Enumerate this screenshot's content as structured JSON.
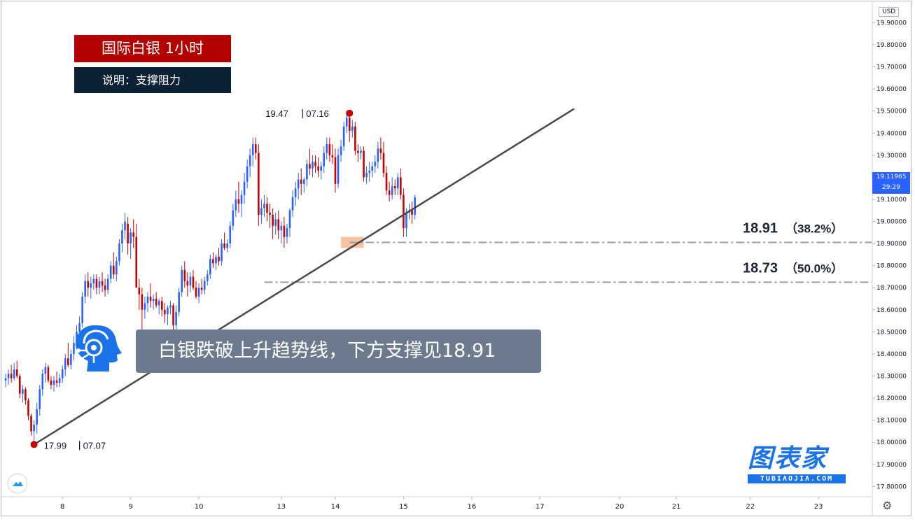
{
  "header": {
    "title": "国际白银  1小时",
    "subtitle": "说明：支撑阻力"
  },
  "callout": {
    "text": "白银跌破上升趋势线，下方支撑见18.91"
  },
  "currency_label": "USD",
  "current_price": {
    "value": "19.11965",
    "countdown": "29:29"
  },
  "logo": {
    "main": "图表家",
    "sub": "TUBIAOJIA.COM"
  },
  "chart_data": {
    "type": "candlestick",
    "y_range": [
      17.76,
      19.99
    ],
    "y_ticks": [
      "19.90000",
      "19.80000",
      "19.70000",
      "19.60000",
      "19.50000",
      "19.40000",
      "19.30000",
      "19.20000",
      "19.10000",
      "19.00000",
      "18.90000",
      "18.80000",
      "18.70000",
      "18.60000",
      "18.50000",
      "18.40000",
      "18.30000",
      "18.20000",
      "18.10000",
      "18.00000",
      "17.90000",
      "17.80000"
    ],
    "x_ticks": [
      {
        "label": "8",
        "bar": 20
      },
      {
        "label": "9",
        "bar": 44
      },
      {
        "label": "10",
        "bar": 68
      },
      {
        "label": "13",
        "bar": 97
      },
      {
        "label": "14",
        "bar": 116
      },
      {
        "label": "15",
        "bar": 140
      },
      {
        "label": "16",
        "bar": 164
      },
      {
        "label": "17",
        "bar": 188
      },
      {
        "label": "20",
        "bar": 216
      },
      {
        "label": "21",
        "bar": 236
      },
      {
        "label": "22",
        "bar": 262
      },
      {
        "label": "23",
        "bar": 286
      }
    ],
    "bars": [
      [
        18.28,
        18.31,
        18.25,
        18.29
      ],
      [
        18.29,
        18.33,
        18.26,
        18.31
      ],
      [
        18.31,
        18.35,
        18.27,
        18.29
      ],
      [
        18.29,
        18.36,
        18.28,
        18.33
      ],
      [
        18.33,
        18.37,
        18.29,
        18.3
      ],
      [
        18.3,
        18.31,
        18.2,
        18.22
      ],
      [
        18.22,
        18.26,
        18.18,
        18.24
      ],
      [
        18.24,
        18.25,
        18.17,
        18.19
      ],
      [
        18.19,
        18.2,
        18.1,
        18.12
      ],
      [
        18.12,
        18.13,
        18.03,
        18.05
      ],
      [
        18.05,
        18.1,
        17.99,
        18.08
      ],
      [
        18.08,
        18.18,
        18.04,
        18.15
      ],
      [
        18.15,
        18.26,
        18.12,
        18.24
      ],
      [
        18.24,
        18.33,
        18.21,
        18.31
      ],
      [
        18.31,
        18.36,
        18.27,
        18.34
      ],
      [
        18.34,
        18.35,
        18.27,
        18.28
      ],
      [
        18.28,
        18.3,
        18.24,
        18.26
      ],
      [
        18.26,
        18.3,
        18.23,
        18.28
      ],
      [
        18.28,
        18.32,
        18.25,
        18.27
      ],
      [
        18.27,
        18.31,
        18.25,
        18.29
      ],
      [
        18.29,
        18.35,
        18.27,
        18.33
      ],
      [
        18.33,
        18.4,
        18.3,
        18.38
      ],
      [
        18.38,
        18.45,
        18.34,
        18.35
      ],
      [
        18.35,
        18.42,
        18.33,
        18.4
      ],
      [
        18.4,
        18.48,
        18.37,
        18.45
      ],
      [
        18.45,
        18.53,
        18.42,
        18.5
      ],
      [
        18.5,
        18.57,
        18.48,
        18.54
      ],
      [
        18.54,
        18.68,
        18.52,
        18.66
      ],
      [
        18.66,
        18.76,
        18.63,
        18.73
      ],
      [
        18.73,
        18.77,
        18.66,
        18.7
      ],
      [
        18.7,
        18.75,
        18.65,
        18.72
      ],
      [
        18.72,
        18.76,
        18.69,
        18.74
      ],
      [
        18.74,
        18.76,
        18.67,
        18.7
      ],
      [
        18.7,
        18.75,
        18.67,
        18.73
      ],
      [
        18.73,
        18.77,
        18.68,
        18.71
      ],
      [
        18.71,
        18.74,
        18.66,
        18.69
      ],
      [
        18.69,
        18.76,
        18.67,
        18.74
      ],
      [
        18.74,
        18.82,
        18.72,
        18.8
      ],
      [
        18.8,
        18.86,
        18.74,
        18.76
      ],
      [
        18.76,
        18.84,
        18.73,
        18.82
      ],
      [
        18.82,
        18.92,
        18.8,
        18.9
      ],
      [
        18.9,
        18.99,
        18.86,
        18.96
      ],
      [
        18.96,
        19.04,
        18.92,
        19.0
      ],
      [
        18.99,
        19.02,
        18.85,
        18.9
      ],
      [
        18.9,
        18.97,
        18.83,
        18.95
      ],
      [
        18.95,
        19.01,
        18.88,
        18.93
      ],
      [
        18.93,
        18.99,
        18.78,
        18.7
      ],
      [
        18.7,
        18.74,
        18.6,
        18.67
      ],
      [
        18.67,
        18.7,
        18.49,
        18.6
      ],
      [
        18.6,
        18.66,
        18.56,
        18.63
      ],
      [
        18.63,
        18.68,
        18.59,
        18.66
      ],
      [
        18.66,
        18.72,
        18.61,
        18.64
      ],
      [
        18.64,
        18.67,
        18.6,
        18.65
      ],
      [
        18.65,
        18.68,
        18.61,
        18.62
      ],
      [
        18.62,
        18.65,
        18.58,
        18.64
      ],
      [
        18.64,
        18.66,
        18.57,
        18.6
      ],
      [
        18.6,
        18.63,
        18.54,
        18.58
      ],
      [
        18.58,
        18.62,
        18.53,
        18.61
      ],
      [
        18.61,
        18.64,
        18.58,
        18.62
      ],
      [
        18.62,
        18.63,
        18.5,
        18.53
      ],
      [
        18.53,
        18.62,
        18.5,
        18.59
      ],
      [
        18.59,
        18.7,
        18.57,
        18.68
      ],
      [
        18.68,
        18.8,
        18.66,
        18.78
      ],
      [
        18.78,
        18.82,
        18.7,
        18.73
      ],
      [
        18.73,
        18.77,
        18.66,
        18.71
      ],
      [
        18.71,
        18.77,
        18.68,
        18.75
      ],
      [
        18.75,
        18.78,
        18.69,
        18.7
      ],
      [
        18.7,
        18.73,
        18.65,
        18.66
      ],
      [
        18.66,
        18.72,
        18.63,
        18.7
      ],
      [
        18.7,
        18.74,
        18.67,
        18.69
      ],
      [
        18.69,
        18.75,
        18.67,
        18.73
      ],
      [
        18.73,
        18.78,
        18.71,
        18.76
      ],
      [
        18.76,
        18.85,
        18.74,
        18.83
      ],
      [
        18.83,
        18.86,
        18.79,
        18.81
      ],
      [
        18.81,
        18.85,
        18.78,
        18.84
      ],
      [
        18.84,
        18.88,
        18.8,
        18.82
      ],
      [
        18.82,
        18.92,
        18.8,
        18.9
      ],
      [
        18.9,
        18.95,
        18.87,
        18.88
      ],
      [
        18.88,
        18.92,
        18.86,
        18.9
      ],
      [
        18.9,
        19.0,
        18.88,
        18.98
      ],
      [
        18.98,
        19.08,
        18.96,
        19.05
      ],
      [
        19.05,
        19.14,
        19.02,
        19.1
      ],
      [
        19.1,
        19.18,
        19.04,
        19.08
      ],
      [
        19.08,
        19.14,
        19.02,
        19.12
      ],
      [
        19.12,
        19.22,
        19.08,
        19.18
      ],
      [
        19.18,
        19.28,
        19.15,
        19.25
      ],
      [
        19.25,
        19.33,
        19.2,
        19.3
      ],
      [
        19.3,
        19.38,
        19.25,
        19.35
      ],
      [
        19.35,
        19.38,
        19.28,
        19.31
      ],
      [
        19.31,
        19.35,
        18.98,
        19.03
      ],
      [
        19.03,
        19.1,
        18.99,
        19.06
      ],
      [
        19.06,
        19.12,
        19.02,
        19.08
      ],
      [
        19.08,
        19.11,
        19.0,
        19.04
      ],
      [
        19.04,
        19.08,
        18.97,
        19.03
      ],
      [
        19.03,
        19.06,
        18.92,
        18.98
      ],
      [
        18.98,
        19.04,
        18.94,
        19.01
      ],
      [
        19.01,
        19.05,
        18.92,
        18.96
      ],
      [
        18.96,
        19.0,
        18.9,
        18.98
      ],
      [
        18.98,
        19.02,
        18.88,
        18.93
      ],
      [
        18.93,
        18.99,
        18.9,
        18.97
      ],
      [
        18.97,
        19.06,
        18.93,
        19.05
      ],
      [
        19.05,
        19.14,
        19.02,
        19.11
      ],
      [
        19.11,
        19.18,
        19.07,
        19.15
      ],
      [
        19.15,
        19.22,
        19.1,
        19.19
      ],
      [
        19.19,
        19.24,
        19.12,
        19.17
      ],
      [
        19.17,
        19.2,
        19.13,
        19.19
      ],
      [
        19.19,
        19.28,
        19.16,
        19.26
      ],
      [
        19.26,
        19.33,
        19.21,
        19.24
      ],
      [
        19.24,
        19.3,
        19.2,
        19.27
      ],
      [
        19.27,
        19.3,
        19.22,
        19.25
      ],
      [
        19.25,
        19.29,
        19.2,
        19.23
      ],
      [
        19.23,
        19.27,
        19.19,
        19.25
      ],
      [
        19.25,
        19.34,
        19.22,
        19.31
      ],
      [
        19.31,
        19.38,
        19.28,
        19.35
      ],
      [
        19.35,
        19.38,
        19.27,
        19.3
      ],
      [
        19.3,
        19.35,
        19.26,
        19.29
      ],
      [
        19.29,
        19.33,
        19.13,
        19.17
      ],
      [
        19.17,
        19.33,
        19.15,
        19.3
      ],
      [
        19.3,
        19.37,
        19.27,
        19.34
      ],
      [
        19.34,
        19.45,
        19.32,
        19.43
      ],
      [
        19.43,
        19.5,
        19.4,
        19.47
      ],
      [
        19.47,
        19.49,
        19.36,
        19.41
      ],
      [
        19.41,
        19.46,
        19.38,
        19.43
      ],
      [
        19.43,
        19.45,
        19.3,
        19.32
      ],
      [
        19.32,
        19.35,
        19.27,
        19.31
      ],
      [
        19.31,
        19.34,
        19.28,
        19.32
      ],
      [
        19.32,
        19.34,
        19.18,
        19.2
      ],
      [
        19.2,
        19.25,
        19.17,
        19.22
      ],
      [
        19.22,
        19.27,
        19.18,
        19.23
      ],
      [
        19.23,
        19.27,
        19.2,
        19.25
      ],
      [
        19.25,
        19.3,
        19.22,
        19.27
      ],
      [
        19.27,
        19.36,
        19.24,
        19.33
      ],
      [
        19.33,
        19.38,
        19.28,
        19.31
      ],
      [
        19.31,
        19.36,
        19.2,
        19.22
      ],
      [
        19.22,
        19.25,
        19.12,
        19.14
      ],
      [
        19.14,
        19.18,
        19.09,
        19.12
      ],
      [
        19.12,
        19.2,
        19.1,
        19.16
      ],
      [
        19.16,
        19.19,
        19.12,
        19.15
      ],
      [
        19.15,
        19.22,
        19.12,
        19.2
      ],
      [
        19.2,
        19.24,
        19.1,
        19.12
      ],
      [
        19.12,
        19.15,
        18.93,
        18.97
      ],
      [
        18.97,
        19.06,
        18.93,
        19.04
      ],
      [
        19.04,
        19.08,
        19.01,
        19.05
      ],
      [
        19.05,
        19.09,
        18.99,
        19.03
      ],
      [
        19.03,
        19.12,
        19.01,
        19.11
      ]
    ],
    "trendline": [
      {
        "bar": 10,
        "price": 17.99
      },
      {
        "bar": 200,
        "price": 19.51
      }
    ],
    "high_marker": {
      "label": "19.47",
      "time": "07.16",
      "bar": 121,
      "price": 19.49
    },
    "low_marker": {
      "label": "17.99",
      "time": "07.07",
      "bar": 10,
      "price": 17.99
    },
    "levels": [
      {
        "price": 18.905,
        "label": "18.91",
        "pct": "（38.2%）",
        "from_bar": 121
      },
      {
        "price": 18.725,
        "label": "18.73",
        "pct": "（50.0%）",
        "from_bar": 91
      }
    ],
    "support_zone": {
      "bar_from": 118,
      "bar_to": 126,
      "price_low": 18.88,
      "price_high": 18.93
    },
    "up_color": "#2962ff",
    "down_color": "#c70000",
    "trend_color": "#4a4a4a",
    "level_color": "#9e9e9e",
    "zone_color": "#f5b48a"
  }
}
